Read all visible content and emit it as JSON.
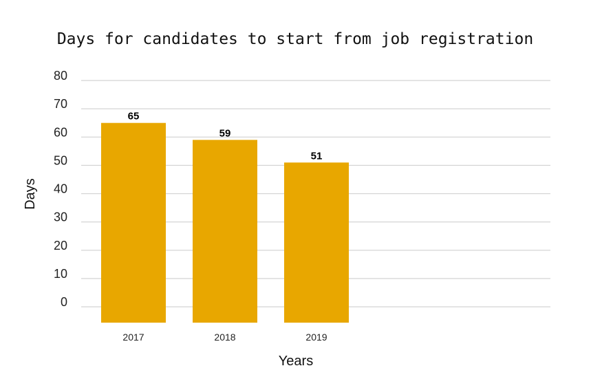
{
  "chart_data": {
    "type": "bar",
    "title": "Days for candidates to start from job registration",
    "xlabel": "Years",
    "ylabel": "Days",
    "categories": [
      "2017",
      "2018",
      "2019"
    ],
    "values": [
      65,
      59,
      51
    ],
    "data_labels": [
      "65",
      "59",
      "51"
    ],
    "ylim": [
      0,
      80
    ],
    "yticks": [
      "0",
      "10",
      "20",
      "30",
      "40",
      "50",
      "60",
      "70",
      "80"
    ],
    "grid": true,
    "legend": "none",
    "bar_color": "#E8A700"
  }
}
